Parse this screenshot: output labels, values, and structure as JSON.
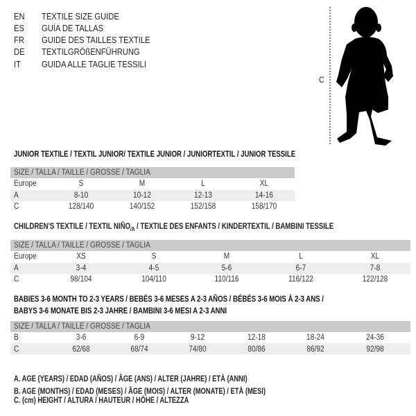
{
  "languages": [
    {
      "code": "EN",
      "title": "TEXTILE SIZE GUIDE"
    },
    {
      "code": "ES",
      "title": "GUÍA DE TALLAS"
    },
    {
      "code": "FR",
      "title": "GUIDE DES TAILLES TEXTILE"
    },
    {
      "code": "DE",
      "title": "TEXTILGRÖßENFÜHRUNG"
    },
    {
      "code": "IT",
      "title": "GUIDA ALLE TAGLIE TESSILI"
    }
  ],
  "figure": {
    "measure_label": "C",
    "icon": "child-silhouette"
  },
  "size_header": "SIZE / TALLA / TAILLE / GRÖSSE / TAGLIA",
  "junior": {
    "title": "JUNIOR TEXTILE / TEXTIL JUNIOR/ TEXTILE JUNIOR / JUNIORTEXTIL / JUNIOR TESSILE",
    "rows": [
      {
        "label": "Europe",
        "values": [
          "S",
          "M",
          "L",
          "XL"
        ]
      },
      {
        "label": "A",
        "values": [
          "8-10",
          "10-12",
          "12-13",
          "14-16"
        ]
      },
      {
        "label": "C",
        "values": [
          "128/140",
          "140/152",
          "152/158",
          "158/170"
        ]
      }
    ]
  },
  "children": {
    "title_main": "CHILDREN'S TEXTILE / TEXTIL NIÑO",
    "title_sub": "/A",
    "title_rest": " / TEXTILE DES ENFANTS / KINDERTEXTIL / BAMBINI TESSILE",
    "rows": [
      {
        "label": "Europe",
        "values": [
          "XS",
          "S",
          "M",
          "L",
          "XL"
        ]
      },
      {
        "label": "A",
        "values": [
          "3-4",
          "4-5",
          "5-6",
          "6-7",
          "7-8"
        ]
      },
      {
        "label": "C",
        "values": [
          "98/104",
          "104/110",
          "110/116",
          "116/122",
          "122/128"
        ]
      }
    ]
  },
  "babies": {
    "title_line1": "BABIES 3-6 MONTH TO 2-3 YEARS / BEBÉS 3-6 MESES A 2-3 AÑOS / BÉBÉS 3-6 MOIS À 2-3 ANS /",
    "title_line2": "BABYS 3-6 MONATE BIS 2-3 JAHRE / BAMBINI 3-6 MESI A 2-3 ANNI",
    "rows": [
      {
        "label": "B",
        "values": [
          "3-6",
          "6-9",
          "9-12",
          "12-18",
          "18-24",
          "24-36"
        ]
      },
      {
        "label": "C",
        "values": [
          "62/68",
          "68/74",
          "74/80",
          "80/86",
          "86/92",
          "92/98"
        ]
      }
    ]
  },
  "legend": [
    "A. AGE (YEARS) / EDAD (AÑOS) / ÂGE (ANS) / ALTER (JAHRE) / ETÀ (ANNI)",
    "B. AGE (MONTHS) / EDAD (MESES) / ÂGE (MOIS) / ALTER (MONATE) / ETÀ (MESI)",
    "C. (cm) HEIGHT / ALTURA / HAUTEUR / HÖHE / ALTEZZA"
  ],
  "colors": {
    "header_band": "#cbcbcb",
    "alt_row": "#ededed"
  }
}
